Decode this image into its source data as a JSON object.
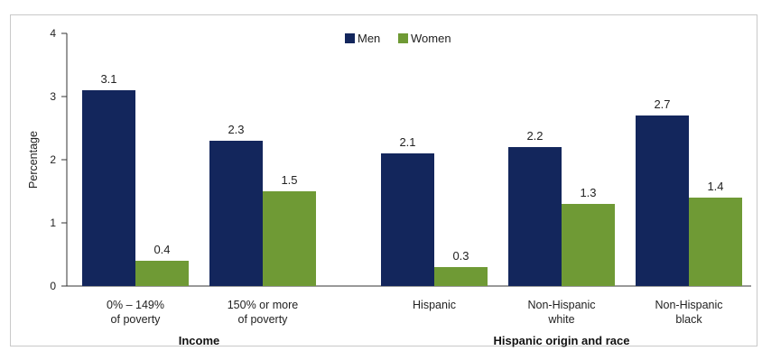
{
  "chart_data": {
    "type": "bar",
    "title": "",
    "xlabel": "",
    "ylabel": "Percentage",
    "ylim": [
      0,
      4
    ],
    "yticks": [
      0,
      1,
      2,
      3,
      4
    ],
    "grid": false,
    "legend_position": "top-center",
    "categories": [
      [
        "0% – 149%",
        "of poverty"
      ],
      [
        "150% or more",
        "of poverty"
      ],
      [
        "Hispanic"
      ],
      [
        "Non-Hispanic",
        "white"
      ],
      [
        "Non-Hispanic",
        "black"
      ]
    ],
    "category_groups": [
      {
        "label": "Income",
        "categories": [
          0,
          1
        ]
      },
      {
        "label": "Hispanic origin and race",
        "categories": [
          2,
          3,
          4
        ]
      }
    ],
    "series": [
      {
        "name": "Men",
        "color": "#13265c",
        "values": [
          3.1,
          2.3,
          2.1,
          2.2,
          2.7
        ],
        "labels": [
          "3.1",
          "2.3",
          "2.1",
          "2.2",
          "2.7"
        ]
      },
      {
        "name": "Women",
        "color": "#6f9a35",
        "values": [
          0.4,
          1.5,
          0.3,
          1.3,
          1.4
        ],
        "labels": [
          "0.4",
          "1.5",
          "0.3",
          "1.3",
          "1.4"
        ]
      }
    ]
  }
}
